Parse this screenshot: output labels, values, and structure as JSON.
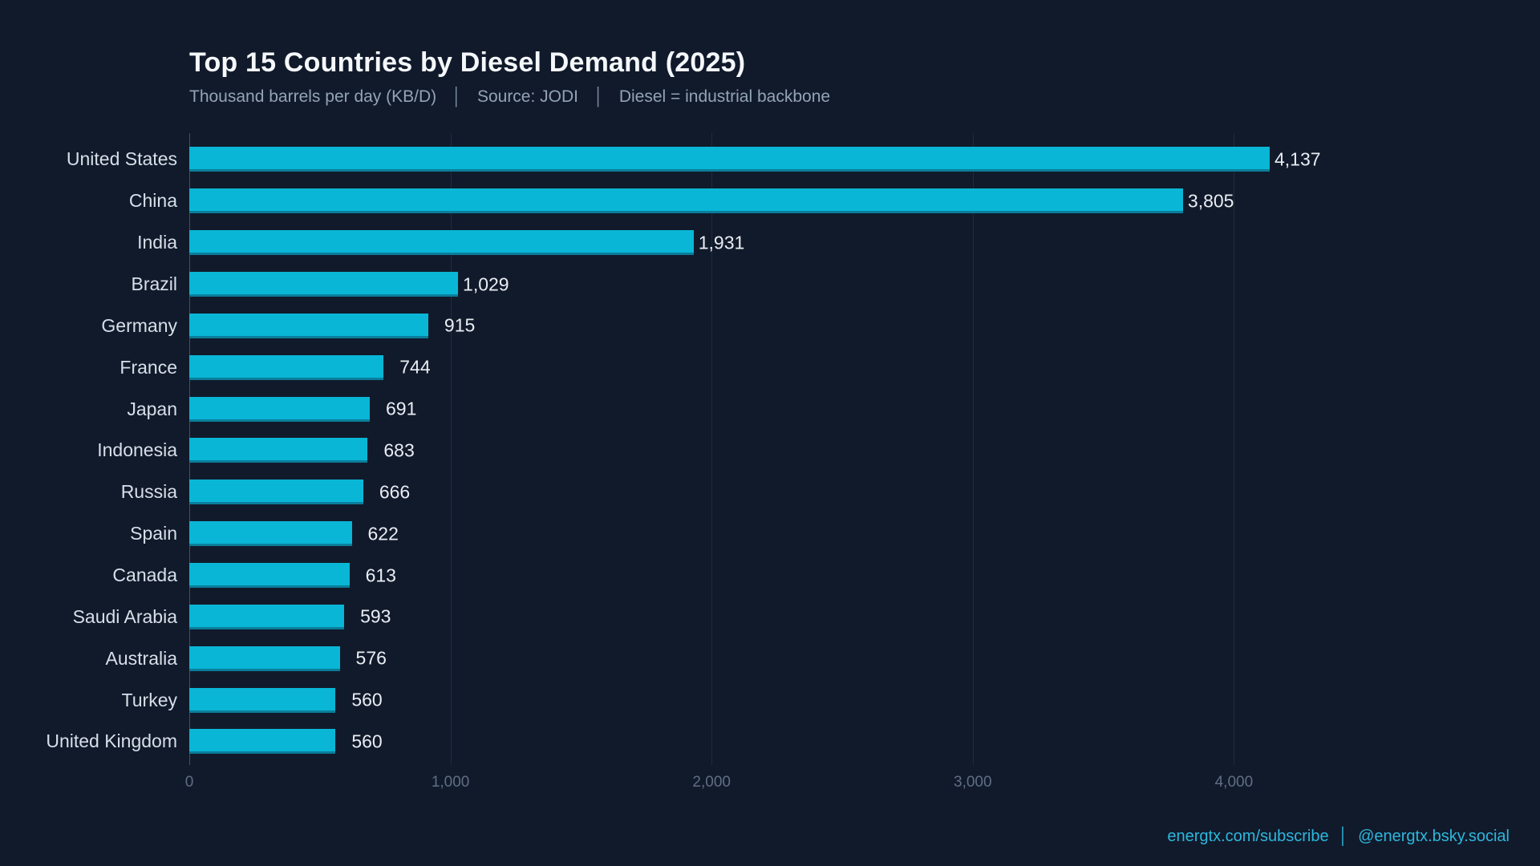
{
  "header": {
    "title": "Top 15 Countries by Diesel Demand (2025)",
    "subtitle_units": "Thousand barrels per day (KB/D)",
    "subtitle_separator": "│",
    "subtitle_source": "Source: JODI",
    "subtitle_note": "Diesel = industrial backbone"
  },
  "chart_data": {
    "type": "bar",
    "orientation": "horizontal",
    "title": "Top 15 Countries by Diesel Demand (2025)",
    "subtitle": "Thousand barrels per day (KB/D) │ Source: JODI │ Diesel = industrial backbone",
    "categories": [
      "United States",
      "China",
      "India",
      "Brazil",
      "Germany",
      "France",
      "Japan",
      "Indonesia",
      "Russia",
      "Spain",
      "Canada",
      "Saudi Arabia",
      "Australia",
      "Turkey",
      "United Kingdom"
    ],
    "values": [
      4137,
      3805,
      1931,
      1029,
      915,
      744,
      691,
      683,
      666,
      622,
      613,
      593,
      576,
      560,
      560
    ],
    "value_labels": [
      "4,137",
      "3,805",
      "1,931",
      "1,029",
      "915",
      "744",
      "691",
      "683",
      "666",
      "622",
      "613",
      "593",
      "576",
      "560",
      "560"
    ],
    "xlabel": "",
    "ylabel": "",
    "xlim": [
      0,
      4450
    ],
    "xticks": [
      0,
      1000,
      2000,
      3000,
      4000
    ],
    "xtick_labels": [
      "0",
      "1,000",
      "2,000",
      "3,000",
      "4,000"
    ],
    "grid": "vertical",
    "legend": null,
    "bar_color": "#09b6d6",
    "background_color": "#111a2b",
    "title_color": "#f5f8fb",
    "subtitle_color": "#93a3b6",
    "tick_color": "#5f6e85",
    "label_color": "#d7dfe9",
    "value_color": "#e9edf3"
  },
  "footer": {
    "link": "energtx.com/subscribe",
    "separator": "│",
    "handle": "@energtx.bsky.social",
    "color": "#2db7dd"
  }
}
